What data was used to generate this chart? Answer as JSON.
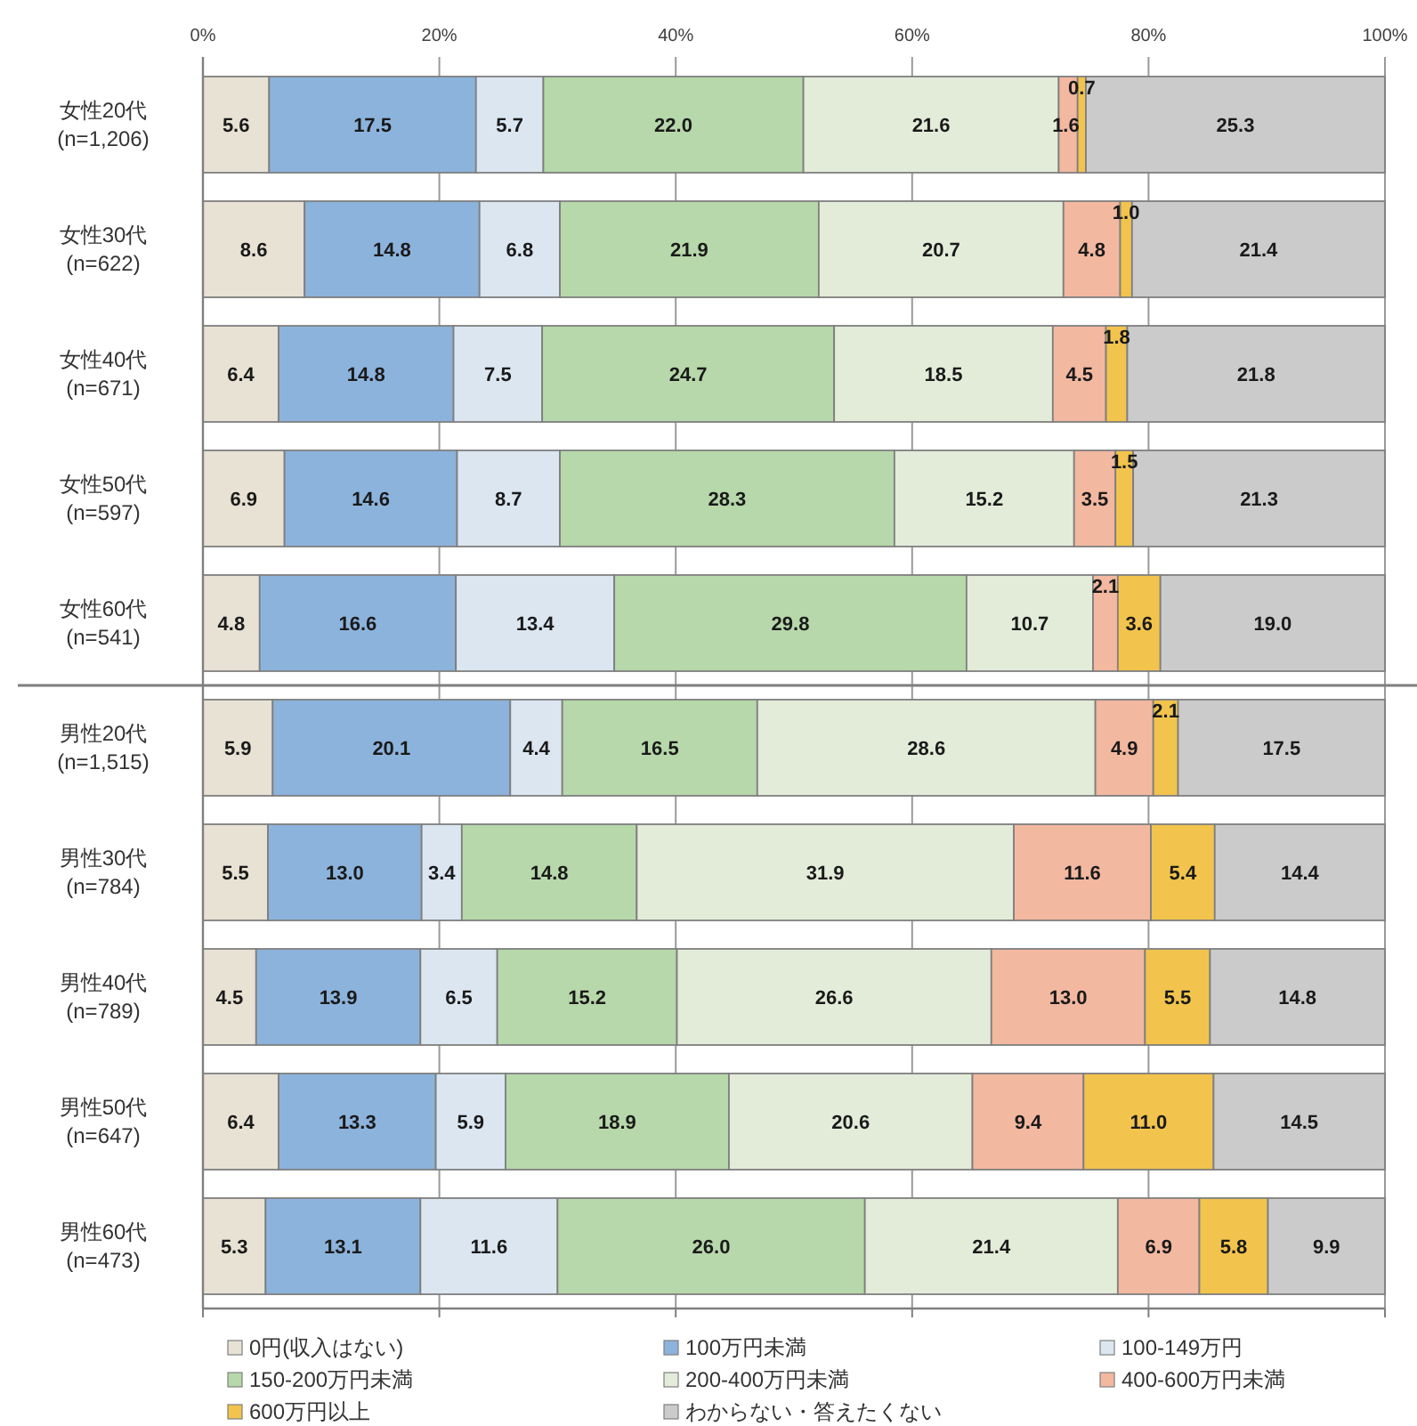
{
  "chart_data": {
    "type": "bar",
    "orientation": "horizontal",
    "stacked": true,
    "categories": [
      "女性20代\n(n=1,206)",
      "女性30代\n(n=622)",
      "女性40代\n(n=671)",
      "女性50代\n(n=597)",
      "女性60代\n(n=541)",
      "男性20代\n(n=1,515)",
      "男性30代\n(n=784)",
      "男性40代\n(n=789)",
      "男性50代\n(n=647)",
      "男性60代\n(n=473)"
    ],
    "series": [
      {
        "name": "0円(収入はない)",
        "color": "#e8e2d4",
        "values": [
          5.6,
          8.6,
          6.4,
          6.9,
          4.8,
          5.9,
          5.5,
          4.5,
          6.4,
          5.3
        ],
        "value_labels": [
          "5.6",
          "8.6",
          "6.4",
          "6.9",
          "4.8",
          "5.9",
          "5.5",
          "4.5",
          "6.4",
          "5.3"
        ]
      },
      {
        "name": "100万円未満",
        "color": "#8cb3dc",
        "values": [
          17.5,
          14.8,
          14.8,
          14.6,
          16.6,
          20.1,
          13.0,
          13.9,
          13.3,
          13.1
        ],
        "value_labels": [
          "17.5",
          "14.8",
          "14.8",
          "14.6",
          "16.6",
          "20.1",
          "13.0",
          "13.9",
          "13.3",
          "13.1"
        ]
      },
      {
        "name": "100-149万円",
        "color": "#dbe6f1",
        "values": [
          5.7,
          6.8,
          7.5,
          8.7,
          13.4,
          4.4,
          3.4,
          6.5,
          5.9,
          11.6
        ],
        "value_labels": [
          "5.7",
          "6.8",
          "7.5",
          "8.7",
          "13.4",
          "4.4",
          "3.4",
          "6.5",
          "5.9",
          "11.6"
        ]
      },
      {
        "name": "150-200万円未満",
        "color": "#b7d8aa",
        "values": [
          22.0,
          21.9,
          24.7,
          28.3,
          29.8,
          16.5,
          14.8,
          15.2,
          18.9,
          26.0
        ],
        "value_labels": [
          "22.0",
          "21.9",
          "24.7",
          "28.3",
          "29.8",
          "16.5",
          "14.8",
          "15.2",
          "18.9",
          "26.0"
        ]
      },
      {
        "name": "200-400万円未満",
        "color": "#e3ecd9",
        "values": [
          21.6,
          20.7,
          18.5,
          15.2,
          10.7,
          28.6,
          31.9,
          26.6,
          20.6,
          21.4
        ],
        "value_labels": [
          "21.6",
          "20.7",
          "18.5",
          "15.2",
          "10.7",
          "28.6",
          "31.9",
          "26.6",
          "20.6",
          "21.4"
        ]
      },
      {
        "name": "400-600万円未満",
        "color": "#f3b8a0",
        "values": [
          1.6,
          4.8,
          4.5,
          3.5,
          2.1,
          4.9,
          11.6,
          13.0,
          9.4,
          6.9
        ],
        "value_labels": [
          "1.6",
          "4.8",
          "4.5",
          "3.5",
          "2.1",
          "4.9",
          "11.6",
          "13.0",
          "9.4",
          "6.9"
        ]
      },
      {
        "name": "600万円以上",
        "color": "#f2c44d",
        "values": [
          0.7,
          1.0,
          1.8,
          1.5,
          3.6,
          2.1,
          5.4,
          5.5,
          11.0,
          5.8
        ],
        "value_labels": [
          "0.7",
          "1.0",
          "1.8",
          "1.5",
          "3.6",
          "2.1",
          "5.4",
          "5.5",
          "11.0",
          "5.8"
        ]
      },
      {
        "name": "わからない・答えたくない",
        "color": "#cbcbcb",
        "values": [
          25.3,
          21.4,
          21.8,
          21.3,
          19.0,
          17.5,
          14.4,
          14.8,
          14.5,
          9.9
        ],
        "value_labels": [
          "25.3",
          "21.4",
          "21.8",
          "21.3",
          "19.0",
          "17.5",
          "14.4",
          "14.8",
          "14.5",
          "9.9"
        ]
      }
    ],
    "xlim": [
      0,
      100
    ],
    "xticks": [
      {
        "value": 0,
        "label": "0%"
      },
      {
        "value": 20,
        "label": "20%"
      },
      {
        "value": 40,
        "label": "40%"
      },
      {
        "value": 60,
        "label": "60%"
      },
      {
        "value": 80,
        "label": "80%"
      },
      {
        "value": 100,
        "label": "100%"
      }
    ],
    "grid": "x",
    "legend": "bottom",
    "ref_lines": [
      {
        "axis": "y",
        "value": "男性20代\n(n=1,515)"
      }
    ]
  }
}
